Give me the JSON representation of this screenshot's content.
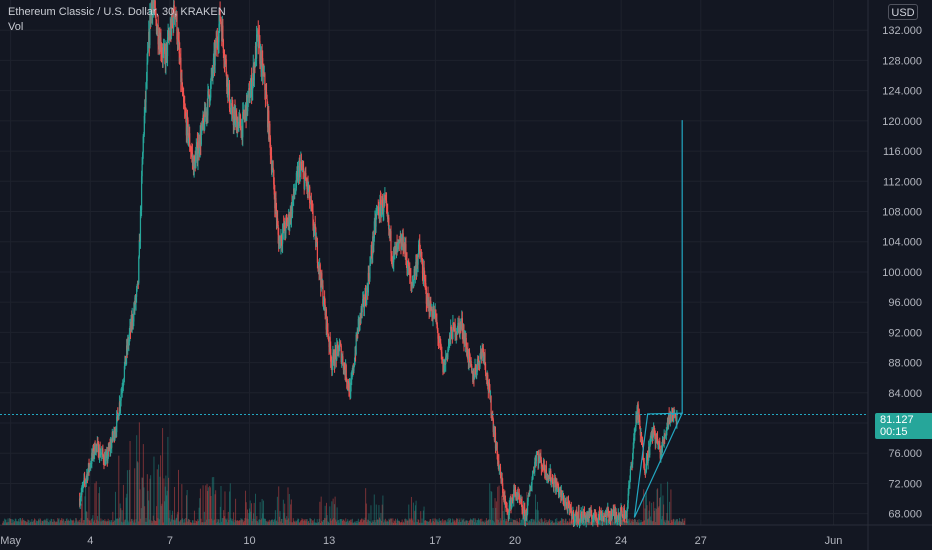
{
  "legend": {
    "title": "Ethereum Classic / U.S. Dollar, 30, KRAKEN",
    "volume_label": "Vol"
  },
  "currency": "USD",
  "last_price": {
    "value": "81.127",
    "countdown": "00:15"
  },
  "colors": {
    "background": "#131722",
    "up": "#26a69a",
    "down": "#ef5350",
    "grid": "#1e222d",
    "drawing": "#22a7c1",
    "axis_text": "#b2b5be"
  },
  "chart_data": {
    "type": "candlestick",
    "symbol": "ETCUSD",
    "interval": "30",
    "exchange": "KRAKEN",
    "y_axis_ticks": [
      "132.000",
      "128.000",
      "124.000",
      "120.000",
      "116.000",
      "112.000",
      "108.000",
      "104.000",
      "100.000",
      "96.000",
      "92.000",
      "88.000",
      "84.000",
      "80.000",
      "76.000",
      "72.000",
      "68.000"
    ],
    "ylim": [
      66.5,
      136
    ],
    "x_axis_ticks": [
      {
        "label": "May",
        "day": 1
      },
      {
        "label": "4",
        "day": 4
      },
      {
        "label": "7",
        "day": 7
      },
      {
        "label": "10",
        "day": 10
      },
      {
        "label": "13",
        "day": 13
      },
      {
        "label": "17",
        "day": 17
      },
      {
        "label": "20",
        "day": 20
      },
      {
        "label": "24",
        "day": 24
      },
      {
        "label": "27",
        "day": 27
      },
      {
        "label": "Jun",
        "day": 32
      }
    ],
    "xlim": [
      0.6,
      33.3
    ],
    "price_path": [
      [
        3.6,
        70
      ],
      [
        4.2,
        77
      ],
      [
        4.6,
        75
      ],
      [
        5.0,
        80
      ],
      [
        5.4,
        90
      ],
      [
        5.8,
        98
      ],
      [
        6.0,
        118
      ],
      [
        6.3,
        136
      ],
      [
        6.8,
        128
      ],
      [
        7.2,
        135
      ],
      [
        7.5,
        122
      ],
      [
        7.9,
        114
      ],
      [
        8.3,
        120
      ],
      [
        8.6,
        126
      ],
      [
        8.9,
        134
      ],
      [
        9.3,
        121
      ],
      [
        9.7,
        119
      ],
      [
        10.1,
        125
      ],
      [
        10.3,
        131
      ],
      [
        10.6,
        124
      ],
      [
        10.9,
        112
      ],
      [
        11.1,
        104
      ],
      [
        11.5,
        107
      ],
      [
        11.9,
        114
      ],
      [
        12.2,
        111
      ],
      [
        12.5,
        104
      ],
      [
        12.8,
        96
      ],
      [
        13.1,
        88
      ],
      [
        13.4,
        90
      ],
      [
        13.8,
        84
      ],
      [
        14.1,
        93
      ],
      [
        14.4,
        97
      ],
      [
        14.8,
        108
      ],
      [
        15.1,
        109
      ],
      [
        15.4,
        102
      ],
      [
        15.8,
        104
      ],
      [
        16.1,
        98
      ],
      [
        16.4,
        103
      ],
      [
        16.7,
        96
      ],
      [
        17.0,
        94
      ],
      [
        17.3,
        87
      ],
      [
        17.6,
        92
      ],
      [
        18.0,
        93
      ],
      [
        18.4,
        86
      ],
      [
        18.8,
        90
      ],
      [
        19.1,
        82
      ],
      [
        19.4,
        74
      ],
      [
        19.7,
        68
      ],
      [
        20.0,
        71
      ],
      [
        20.4,
        67.5
      ],
      [
        20.8,
        76
      ],
      [
        21.1,
        74
      ],
      [
        21.5,
        72
      ],
      [
        21.8,
        70
      ],
      [
        22.2,
        67.6
      ],
      [
        23.0,
        67.7
      ],
      [
        24.2,
        68
      ],
      [
        24.6,
        82
      ],
      [
        24.9,
        74
      ],
      [
        25.2,
        79
      ],
      [
        25.5,
        76
      ],
      [
        25.8,
        81
      ],
      [
        26.1,
        81.1
      ]
    ],
    "drawings": [
      {
        "type": "triangle",
        "points": [
          [
            24.5,
            67.5
          ],
          [
            26.3,
            81.3
          ],
          [
            25.0,
            81.2
          ]
        ]
      },
      {
        "type": "vertical_line",
        "day": 26.3,
        "from": 81.3,
        "to": 120.1
      }
    ],
    "volume_baseline_spikes": [
      [
        4.0,
        0.5
      ],
      [
        5.2,
        0.8
      ],
      [
        5.7,
        1.0
      ],
      [
        6.1,
        0.7
      ],
      [
        6.6,
        0.9
      ],
      [
        7.0,
        0.6
      ],
      [
        7.6,
        0.7
      ],
      [
        8.4,
        0.6
      ],
      [
        9.2,
        0.5
      ],
      [
        10.2,
        0.45
      ],
      [
        11.3,
        0.4
      ],
      [
        13.0,
        0.35
      ],
      [
        14.7,
        0.4
      ],
      [
        16.3,
        0.3
      ],
      [
        19.3,
        0.5
      ],
      [
        20.6,
        0.4
      ],
      [
        25.1,
        0.55
      ],
      [
        25.6,
        0.5
      ]
    ]
  }
}
